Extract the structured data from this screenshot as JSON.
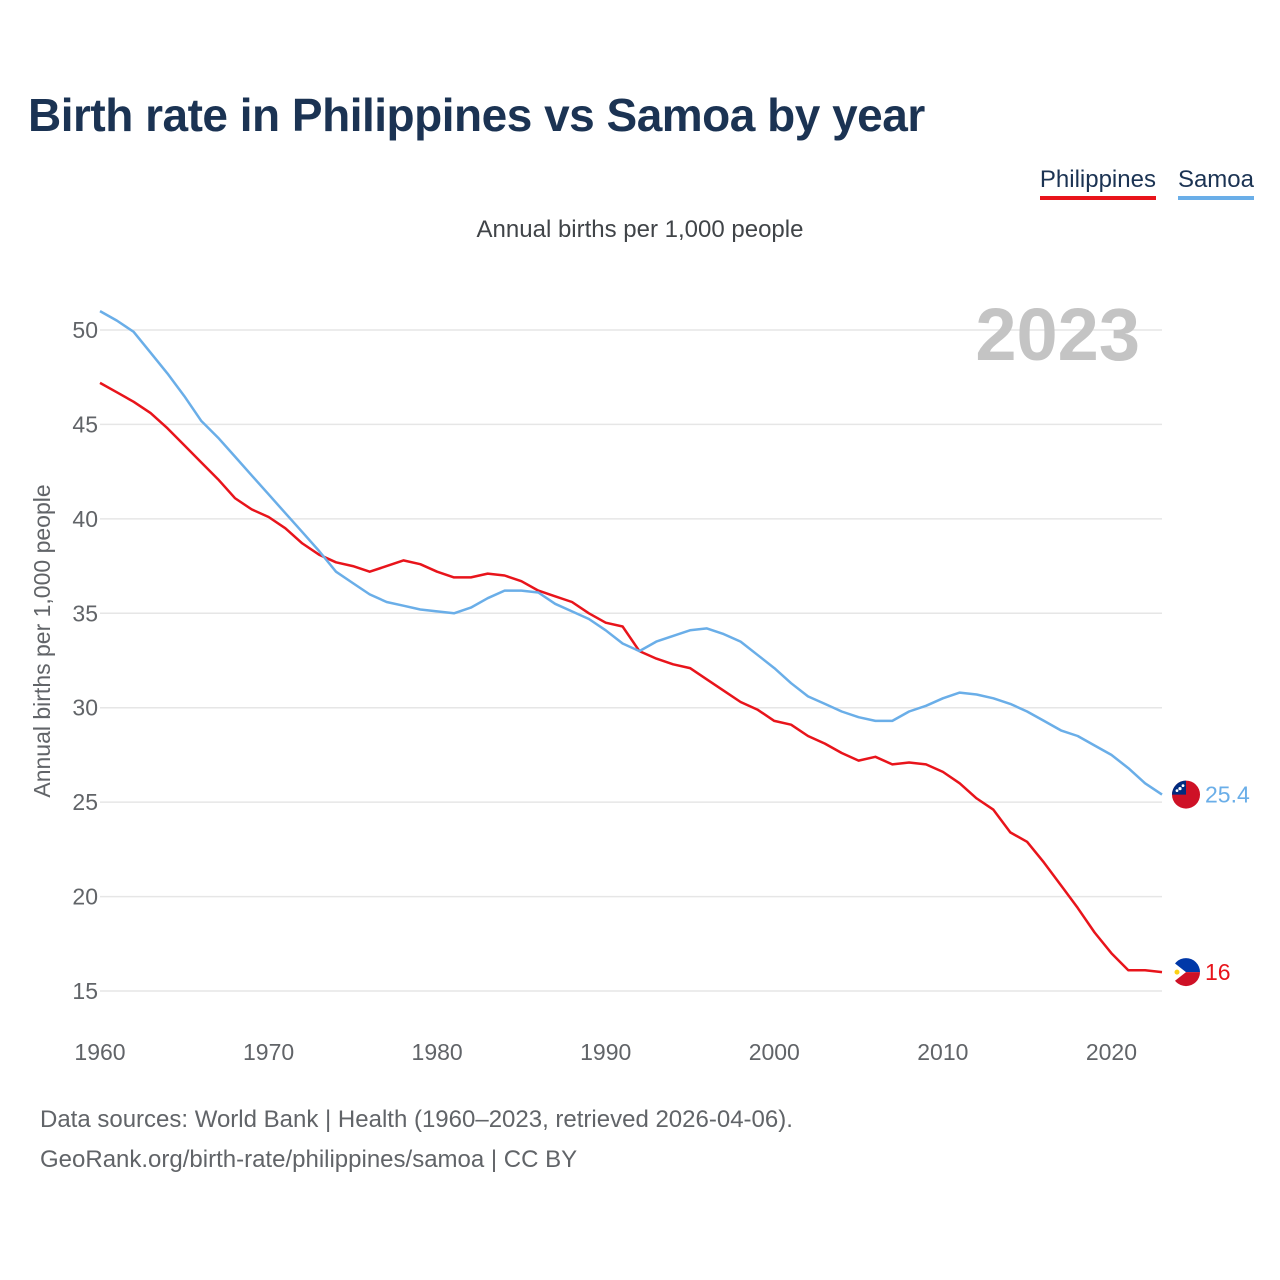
{
  "header": {
    "title": "Birth rate in Philippines vs Samoa by year",
    "subtitle": "Annual births per 1,000 people"
  },
  "legend": [
    {
      "label": "Philippines",
      "color": "#e8141b"
    },
    {
      "label": "Samoa",
      "color": "#6aaee8"
    }
  ],
  "year_watermark": "2023",
  "footer": {
    "sources": "Data sources: World Bank | Health (1960–2023, retrieved 2026-04-06).",
    "url": "GeoRank.org/birth-rate/philippines/samoa | CC BY"
  },
  "chart_data": {
    "type": "line",
    "title": "Birth rate in Philippines vs Samoa by year",
    "subtitle": "Annual births per 1,000 people",
    "xlabel": "",
    "ylabel": "Annual births per 1,000 people",
    "xlim": [
      1960,
      2023
    ],
    "ylim": [
      13,
      51
    ],
    "x_ticks": [
      "1960",
      "1970",
      "1980",
      "1990",
      "2000",
      "2010",
      "2020"
    ],
    "y_ticks": [
      "15",
      "20",
      "25",
      "30",
      "35",
      "40",
      "45",
      "50"
    ],
    "grid": true,
    "x": [
      1960,
      1961,
      1962,
      1963,
      1964,
      1965,
      1966,
      1967,
      1968,
      1969,
      1970,
      1971,
      1972,
      1973,
      1974,
      1975,
      1976,
      1977,
      1978,
      1979,
      1980,
      1981,
      1982,
      1983,
      1984,
      1985,
      1986,
      1987,
      1988,
      1989,
      1990,
      1991,
      1992,
      1993,
      1994,
      1995,
      1996,
      1997,
      1998,
      1999,
      2000,
      2001,
      2002,
      2003,
      2004,
      2005,
      2006,
      2007,
      2008,
      2009,
      2010,
      2011,
      2012,
      2013,
      2014,
      2015,
      2016,
      2017,
      2018,
      2019,
      2020,
      2021,
      2022,
      2023
    ],
    "series": [
      {
        "name": "Philippines",
        "color": "#e8141b",
        "end_label": "16",
        "values": [
          47.2,
          46.7,
          46.2,
          45.6,
          44.8,
          43.9,
          43.0,
          42.1,
          41.1,
          40.5,
          40.1,
          39.5,
          38.7,
          38.1,
          37.7,
          37.5,
          37.2,
          37.5,
          37.8,
          37.6,
          37.2,
          36.9,
          36.9,
          37.1,
          37.0,
          36.7,
          36.2,
          35.9,
          35.6,
          35.0,
          34.5,
          34.3,
          33.0,
          32.6,
          32.3,
          32.1,
          31.5,
          30.9,
          30.3,
          29.9,
          29.3,
          29.1,
          28.5,
          28.1,
          27.6,
          27.2,
          27.4,
          27.0,
          27.1,
          27.0,
          26.6,
          26.0,
          25.2,
          24.6,
          23.4,
          22.9,
          21.8,
          20.6,
          19.4,
          18.1,
          17.0,
          16.1,
          16.1,
          16.0
        ]
      },
      {
        "name": "Samoa",
        "color": "#6aaee8",
        "end_label": "25.4",
        "values": [
          51.0,
          50.5,
          49.9,
          48.8,
          47.7,
          46.5,
          45.2,
          44.3,
          43.3,
          42.3,
          41.3,
          40.3,
          39.3,
          38.3,
          37.2,
          36.6,
          36.0,
          35.6,
          35.4,
          35.2,
          35.1,
          35.0,
          35.3,
          35.8,
          36.2,
          36.2,
          36.1,
          35.5,
          35.1,
          34.7,
          34.1,
          33.4,
          33.0,
          33.5,
          33.8,
          34.1,
          34.2,
          33.9,
          33.5,
          32.8,
          32.1,
          31.3,
          30.6,
          30.2,
          29.8,
          29.5,
          29.3,
          29.3,
          29.8,
          30.1,
          30.5,
          30.8,
          30.7,
          30.5,
          30.2,
          29.8,
          29.3,
          28.8,
          28.5,
          28.0,
          27.5,
          26.8,
          26.0,
          25.4
        ]
      }
    ]
  }
}
